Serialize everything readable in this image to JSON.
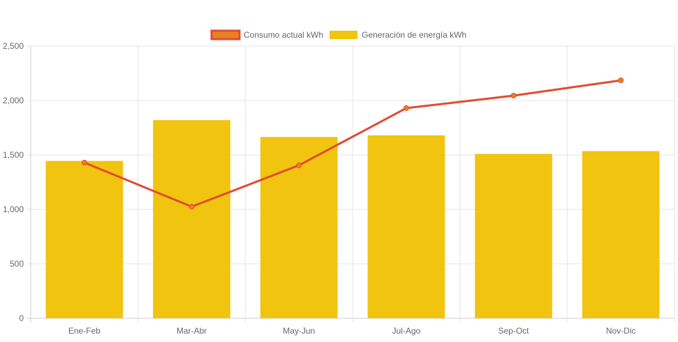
{
  "chart_data": {
    "type": "bar",
    "categories": [
      "Ene-Feb",
      "Mar-Abr",
      "May-Jun",
      "Jul-Ago",
      "Sep-Oct",
      "Nov-Dic"
    ],
    "series": [
      {
        "name": "Consumo actual kWh",
        "type": "line",
        "values": [
          1430,
          1025,
          1405,
          1930,
          2045,
          2185
        ],
        "color": "#e14b32",
        "marker_color": "#e8821f"
      },
      {
        "name": "Generación de energía kWh",
        "type": "bar",
        "values": [
          1445,
          1820,
          1665,
          1680,
          1510,
          1535
        ],
        "color": "#f1c40f"
      }
    ],
    "ylim": [
      0,
      2500
    ],
    "yticks": [
      0,
      500,
      1000,
      1500,
      2000,
      2500
    ],
    "ytick_labels": [
      "0",
      "500",
      "1,000",
      "1,500",
      "2,000",
      "2,500"
    ],
    "legend_position": "top-center",
    "grid": true,
    "title": "",
    "xlabel": "",
    "ylabel": ""
  }
}
